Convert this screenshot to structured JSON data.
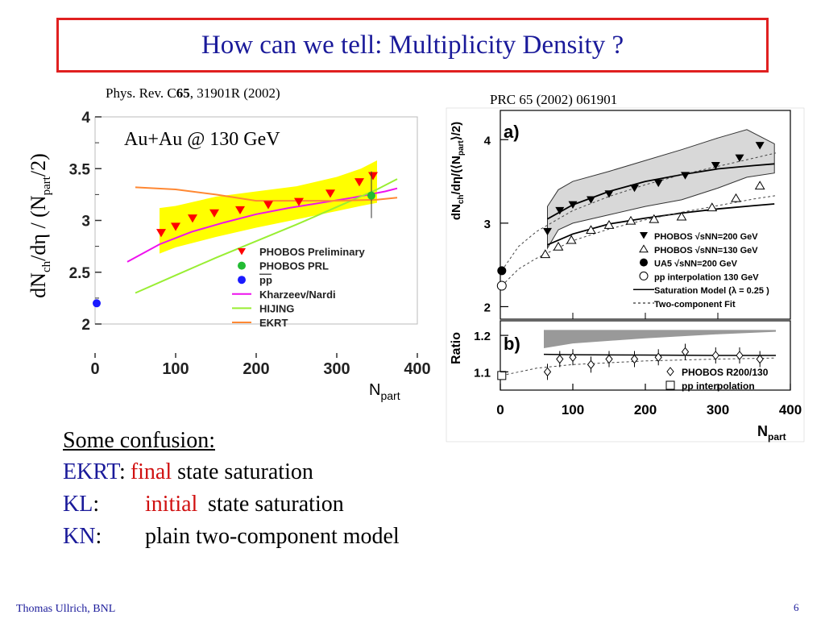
{
  "title": "How can we tell: Multiplicity Density ?",
  "left_ref": {
    "pre": "Phys. Rev. C",
    "bold": "65",
    "post": ", 31901R (2002)"
  },
  "right_ref": "PRC 65 (2002) 061901",
  "colors": {
    "title": "#1a1a9a",
    "border": "#e02020",
    "highlight": "#d01010",
    "band_yellow": "#ffff00"
  },
  "chart_data": [
    {
      "type": "scatter",
      "annotation": "Au+Au @ 130 GeV",
      "ylabel": {
        "a": "dN",
        "b": "ch",
        "c": "/dη / (N",
        "d": "part",
        "e": "/2)"
      },
      "xlabel": {
        "main": "N",
        "sub": "part"
      },
      "xlim": [
        0,
        400
      ],
      "ylim": [
        2,
        4
      ],
      "xticks": [
        "0",
        "100",
        "200",
        "300",
        "400"
      ],
      "yticks": [
        "2",
        "2.5",
        "3",
        "3.5",
        "4"
      ],
      "legend": [
        {
          "label": "PHOBOS Preliminary",
          "marker": "triangle-down",
          "color": "#ff0000"
        },
        {
          "label": "PHOBOS PRL",
          "marker": "circle",
          "color": "#22bb33"
        },
        {
          "label": "pp",
          "marker": "circle",
          "color": "#1a1aff"
        },
        {
          "label": "Kharzeev/Nardi",
          "marker": "line",
          "color": "#ee11ee"
        },
        {
          "label": "HIJING",
          "marker": "line",
          "color": "#99ee33"
        },
        {
          "label": "EKRT",
          "marker": "line",
          "color": "#ff8833"
        }
      ],
      "series": [
        {
          "name": "PHOBOS Preliminary",
          "x": [
            82,
            100,
            121,
            148,
            180,
            215,
            253,
            292,
            328,
            345
          ],
          "y": [
            2.88,
            2.94,
            3.02,
            3.07,
            3.1,
            3.15,
            3.18,
            3.26,
            3.37,
            3.43
          ]
        },
        {
          "name": "PHOBOS PRL",
          "x": [
            343
          ],
          "y": [
            3.24
          ]
        },
        {
          "name": "pp",
          "x": [
            2
          ],
          "y": [
            2.2
          ]
        },
        {
          "name": "Kharzeev/Nardi",
          "x": [
            40,
            80,
            120,
            160,
            200,
            240,
            280,
            320,
            360,
            375
          ],
          "y": [
            2.6,
            2.77,
            2.89,
            2.98,
            3.06,
            3.12,
            3.17,
            3.22,
            3.28,
            3.31
          ]
        },
        {
          "name": "HIJING",
          "x": [
            50,
            100,
            150,
            200,
            250,
            300,
            350,
            375
          ],
          "y": [
            2.3,
            2.47,
            2.64,
            2.8,
            2.96,
            3.13,
            3.3,
            3.4
          ]
        },
        {
          "name": "EKRT",
          "x": [
            50,
            100,
            150,
            200,
            250,
            300,
            350,
            375
          ],
          "y": [
            3.32,
            3.3,
            3.25,
            3.19,
            3.19,
            3.19,
            3.2,
            3.22
          ]
        }
      ],
      "band": {
        "x": [
          80,
          100,
          150,
          200,
          250,
          300,
          330,
          350
        ],
        "upper": [
          3.12,
          3.14,
          3.23,
          3.28,
          3.33,
          3.42,
          3.5,
          3.58
        ],
        "lower": [
          2.68,
          2.74,
          2.84,
          2.93,
          3.01,
          3.09,
          3.14,
          3.17
        ]
      }
    },
    {
      "type": "scatter",
      "panel_a": {
        "label": "a)",
        "ylabel": {
          "a": "dN",
          "b": "ch",
          "c": "/dη/(⟨N",
          "d": "part",
          "e": "⟩/2)"
        },
        "xlim": [
          0,
          400
        ],
        "ylim": [
          1.85,
          4.35
        ],
        "yticks": [
          "2",
          "3",
          "4"
        ],
        "legend": [
          {
            "label": "PHOBOS √sNN=200 GeV",
            "marker": "triangle-down-filled"
          },
          {
            "label": "PHOBOS √sNN=130 GeV",
            "marker": "triangle-up-open"
          },
          {
            "label": "UA5 √sNN=200 GeV",
            "marker": "circle-filled"
          },
          {
            "label": "pp interpolation 130 GeV",
            "marker": "circle-open"
          },
          {
            "label": "Saturation Model (λ = 0.25 )",
            "marker": "line-solid"
          },
          {
            "label": "Two-component Fit",
            "marker": "line-dashed"
          }
        ],
        "series": [
          {
            "name": "PHOBOS √sNN=200 GeV",
            "x": [
              65,
              82,
              100,
              125,
              150,
              185,
              218,
              255,
              297,
              330,
              358
            ],
            "y": [
              2.9,
              3.15,
              3.22,
              3.28,
              3.35,
              3.42,
              3.48,
              3.57,
              3.69,
              3.78,
              3.93
            ]
          },
          {
            "name": "PHOBOS √sNN=130 GeV",
            "x": [
              62,
              80,
              98,
              125,
              150,
              180,
              212,
              250,
              292,
              325,
              358
            ],
            "y": [
              2.63,
              2.72,
              2.8,
              2.92,
              2.98,
              3.03,
              3.05,
              3.08,
              3.19,
              3.3,
              3.45
            ]
          },
          {
            "name": "UA5 √sNN=200 GeV",
            "x": [
              2
            ],
            "y": [
              2.43
            ]
          },
          {
            "name": "pp interpolation 130 GeV",
            "x": [
              2
            ],
            "y": [
              2.25
            ]
          },
          {
            "name": "Saturation 200",
            "x": [
              65,
              100,
              150,
              200,
              250,
              300,
              350,
              378
            ],
            "y": [
              3.05,
              3.22,
              3.38,
              3.5,
              3.58,
              3.65,
              3.69,
              3.71
            ]
          },
          {
            "name": "Saturation 130",
            "x": [
              65,
              100,
              150,
              200,
              250,
              300,
              350,
              378
            ],
            "y": [
              2.74,
              2.87,
              2.99,
              3.06,
              3.12,
              3.17,
              3.21,
              3.23
            ]
          },
          {
            "name": "Two-component 200",
            "x": [
              2,
              25,
              50,
              100,
              150,
              200,
              250,
              300,
              350,
              380
            ],
            "y": [
              2.43,
              2.72,
              2.9,
              3.15,
              3.32,
              3.46,
              3.58,
              3.68,
              3.78,
              3.84
            ]
          },
          {
            "name": "Two-component 130",
            "x": [
              2,
              25,
              50,
              100,
              150,
              200,
              250,
              300,
              350,
              380
            ],
            "y": [
              2.25,
              2.45,
              2.58,
              2.79,
              2.93,
              3.04,
              3.13,
              3.21,
              3.29,
              3.33
            ]
          }
        ],
        "band": {
          "x": [
            65,
            80,
            100,
            150,
            200,
            250,
            300,
            340,
            378
          ],
          "upper": [
            3.2,
            3.4,
            3.5,
            3.62,
            3.75,
            3.88,
            4.02,
            4.12,
            3.95
          ],
          "lower": [
            2.7,
            2.92,
            3.0,
            3.1,
            3.2,
            3.28,
            3.42,
            3.55,
            3.6
          ]
        }
      },
      "panel_b": {
        "label": "b)",
        "ylabel": "Ratio",
        "xlim": [
          0,
          400
        ],
        "ylim": [
          1.05,
          1.24
        ],
        "yticks": [
          "1.1",
          "1.2"
        ],
        "xticks": [
          "0",
          "100",
          "200",
          "300",
          "400"
        ],
        "xlabel": {
          "main": "N",
          "sub": "part"
        },
        "legend": [
          {
            "label": "PHOBOS R200/130",
            "marker": "diamond-open"
          },
          {
            "label": "pp interpolation",
            "marker": "square-open"
          }
        ],
        "series": [
          {
            "name": "PHOBOS R200/130",
            "x": [
              65,
              82,
              100,
              125,
              150,
              185,
              218,
              255,
              297,
              330,
              358
            ],
            "y": [
              1.1,
              1.135,
              1.14,
              1.12,
              1.135,
              1.135,
              1.14,
              1.155,
              1.145,
              1.145,
              1.135
            ]
          },
          {
            "name": "pp interpolation",
            "x": [
              2
            ],
            "y": [
              1.09
            ]
          },
          {
            "name": "Ratio solid",
            "x": [
              60,
              100,
              200,
              300,
              380
            ],
            "y": [
              1.148,
              1.147,
              1.146,
              1.145,
              1.145
            ]
          },
          {
            "name": "Ratio dashed",
            "x": [
              2,
              50,
              100,
              200,
              300,
              380
            ],
            "y": [
              1.09,
              1.11,
              1.12,
              1.13,
              1.135,
              1.138
            ]
          }
        ],
        "band": {
          "x": [
            60,
            100,
            200,
            300,
            380
          ],
          "upper": [
            1.215,
            1.215,
            1.215,
            1.215,
            1.215
          ],
          "lower": [
            1.165,
            1.178,
            1.192,
            1.203,
            1.21
          ]
        }
      }
    }
  ],
  "confusion": {
    "heading": "Some confusion:",
    "lines": [
      {
        "key": "EKRT",
        "sep": ":",
        "hl": "final",
        "rest": " state saturation"
      },
      {
        "key": "KL",
        "sep": ":",
        "hl": "initial",
        "rest": " state saturation"
      },
      {
        "key": "KN",
        "sep": ":",
        "hl": "",
        "rest": "plain two-component model"
      }
    ]
  },
  "footer": "Thomas Ullrich, BNL",
  "page_number": "6"
}
